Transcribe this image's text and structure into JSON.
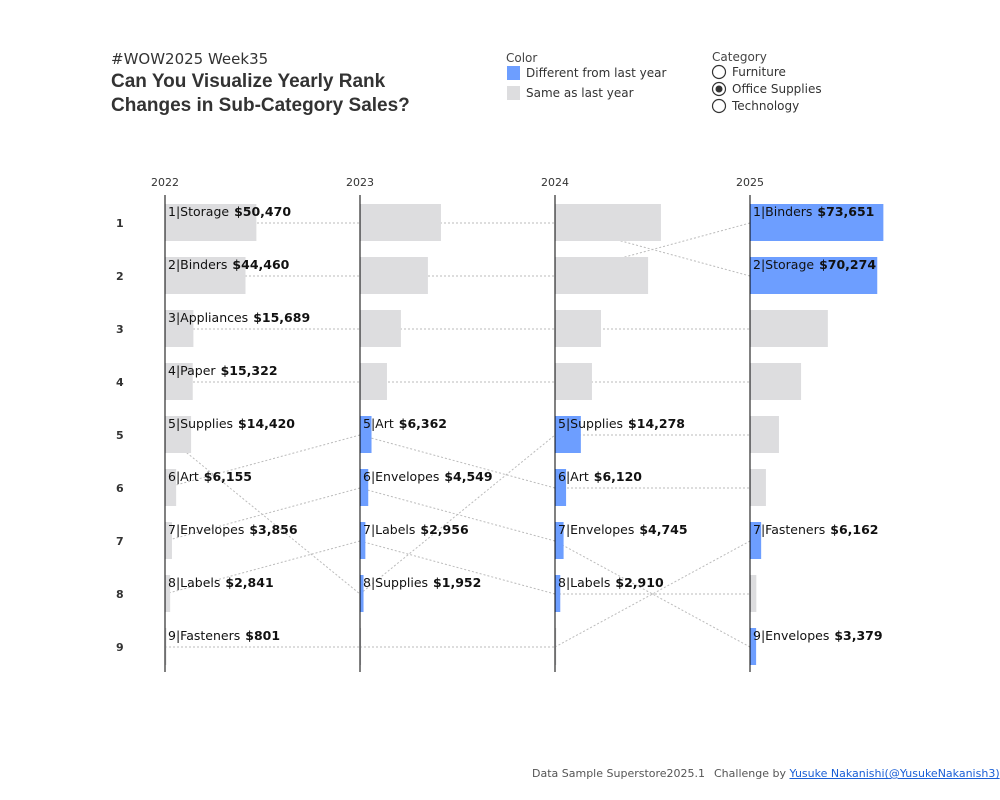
{
  "header": {
    "tag": "#WOW2025 Week35",
    "title": "Can You Visualize Yearly Rank Changes in Sub-Category Sales?"
  },
  "color_legend": {
    "title": "Color",
    "items": [
      {
        "label": "Different from last year",
        "color": "#6d9eff"
      },
      {
        "label": "Same as last year",
        "color": "#dddddf"
      }
    ]
  },
  "category_filter": {
    "title": "Category",
    "options": [
      "Furniture",
      "Office Supplies",
      "Technology"
    ],
    "selected_index": 1
  },
  "chart_data": {
    "type": "rank-bar",
    "ranks": [
      1,
      2,
      3,
      4,
      5,
      6,
      7,
      8,
      9
    ],
    "columns": [
      {
        "year": "2022",
        "bars": [
          {
            "rank": 1,
            "label": "1|Storage",
            "value": 50470,
            "value_label": "$50,470",
            "changed": false
          },
          {
            "rank": 2,
            "label": "2|Binders",
            "value": 44460,
            "value_label": "$44,460",
            "changed": false
          },
          {
            "rank": 3,
            "label": "3|Appliances",
            "value": 15689,
            "value_label": "$15,689",
            "changed": false
          },
          {
            "rank": 4,
            "label": "4|Paper",
            "value": 15322,
            "value_label": "$15,322",
            "changed": false
          },
          {
            "rank": 5,
            "label": "5|Supplies",
            "value": 14420,
            "value_label": "$14,420",
            "changed": false
          },
          {
            "rank": 6,
            "label": "6|Art",
            "value": 6155,
            "value_label": "$6,155",
            "changed": false
          },
          {
            "rank": 7,
            "label": "7|Envelopes",
            "value": 3856,
            "value_label": "$3,856",
            "changed": false
          },
          {
            "rank": 8,
            "label": "8|Labels",
            "value": 2841,
            "value_label": "$2,841",
            "changed": false
          },
          {
            "rank": 9,
            "label": "9|Fasteners",
            "value": 801,
            "value_label": "$801",
            "changed": false
          }
        ]
      },
      {
        "year": "2023",
        "bars": [
          {
            "rank": 1,
            "from": 1,
            "value": 44700,
            "changed": false
          },
          {
            "rank": 2,
            "from": 2,
            "value": 37500,
            "changed": false
          },
          {
            "rank": 3,
            "from": 3,
            "value": 22600,
            "changed": false
          },
          {
            "rank": 4,
            "from": 4,
            "value": 14900,
            "changed": false
          },
          {
            "rank": 5,
            "from": 6,
            "label": "5|Art",
            "value": 6362,
            "value_label": "$6,362",
            "changed": true
          },
          {
            "rank": 6,
            "from": 7,
            "label": "6|Envelopes",
            "value": 4549,
            "value_label": "$4,549",
            "changed": true
          },
          {
            "rank": 7,
            "from": 8,
            "label": "7|Labels",
            "value": 2956,
            "value_label": "$2,956",
            "changed": true
          },
          {
            "rank": 8,
            "from": 5,
            "label": "8|Supplies",
            "value": 1952,
            "value_label": "$1,952",
            "changed": true
          },
          {
            "rank": 9,
            "from": 9,
            "value": 600,
            "changed": false
          }
        ]
      },
      {
        "year": "2024",
        "bars": [
          {
            "rank": 1,
            "from": 1,
            "value": 58500,
            "changed": false
          },
          {
            "rank": 2,
            "from": 2,
            "value": 51400,
            "changed": false
          },
          {
            "rank": 3,
            "from": 3,
            "value": 25400,
            "changed": false
          },
          {
            "rank": 4,
            "from": 4,
            "value": 20400,
            "changed": false
          },
          {
            "rank": 5,
            "from": 8,
            "label": "5|Supplies",
            "value": 14278,
            "value_label": "$14,278",
            "changed": true
          },
          {
            "rank": 6,
            "from": 5,
            "label": "6|Art",
            "value": 6120,
            "value_label": "$6,120",
            "changed": true
          },
          {
            "rank": 7,
            "from": 6,
            "label": "7|Envelopes",
            "value": 4745,
            "value_label": "$4,745",
            "changed": true
          },
          {
            "rank": 8,
            "from": 7,
            "label": "8|Labels",
            "value": 2910,
            "value_label": "$2,910",
            "changed": true
          },
          {
            "rank": 9,
            "from": 9,
            "value": 700,
            "changed": false
          }
        ]
      },
      {
        "year": "2025",
        "bars": [
          {
            "rank": 1,
            "from": 2,
            "label": "1|Binders",
            "value": 73651,
            "value_label": "$73,651",
            "changed": true
          },
          {
            "rank": 2,
            "from": 1,
            "label": "2|Storage",
            "value": 70274,
            "value_label": "$70,274",
            "changed": true
          },
          {
            "rank": 3,
            "from": 3,
            "value": 43000,
            "changed": false
          },
          {
            "rank": 4,
            "from": 4,
            "value": 28200,
            "changed": false
          },
          {
            "rank": 5,
            "from": 5,
            "value": 16000,
            "changed": false
          },
          {
            "rank": 6,
            "from": 6,
            "value": 8800,
            "changed": false
          },
          {
            "rank": 7,
            "from": 9,
            "label": "7|Fasteners",
            "value": 6162,
            "value_label": "$6,162",
            "changed": true
          },
          {
            "rank": 8,
            "from": 8,
            "value": 3500,
            "changed": false
          },
          {
            "rank": 9,
            "from": 7,
            "label": "9|Envelopes",
            "value": 3379,
            "value_label": "$3,379",
            "changed": true
          }
        ]
      }
    ]
  },
  "footer": {
    "source": "Data Sample Superstore2025.1",
    "credit": "Challenge by",
    "author": "Yusuke Nakanishi(@YusukeNakanish3)"
  }
}
